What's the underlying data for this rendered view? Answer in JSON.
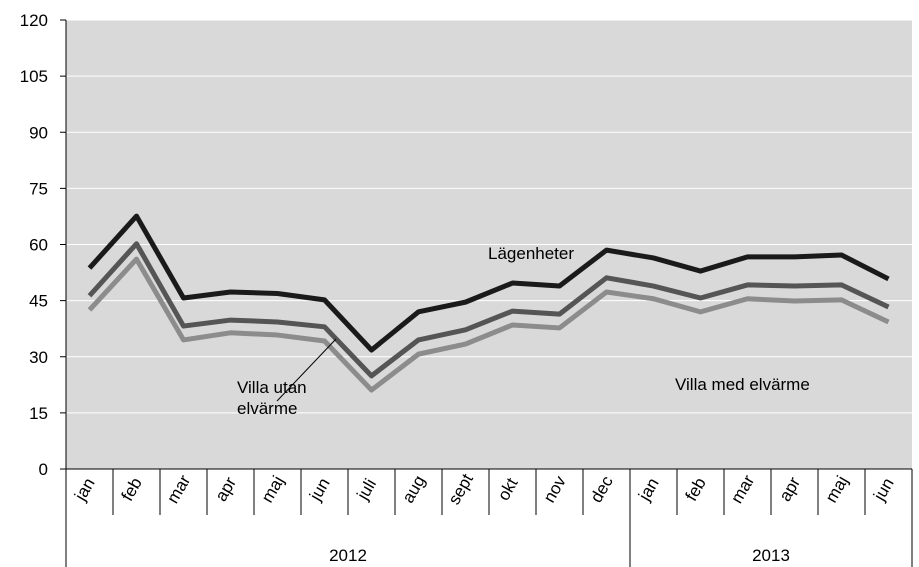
{
  "chart_data": {
    "type": "line",
    "categories": [
      "jan",
      "feb",
      "mar",
      "apr",
      "maj",
      "jun",
      "juli",
      "aug",
      "sept",
      "okt",
      "nov",
      "dec",
      "jan",
      "feb",
      "mar",
      "apr",
      "maj",
      "jun"
    ],
    "groups": [
      "2012",
      "2013"
    ],
    "series": [
      {
        "name": "Lägenheter",
        "color": "#1a1a1a",
        "values": [
          53.7,
          67.6,
          45.7,
          47.3,
          46.9,
          45.2,
          31.8,
          42,
          44.6,
          49.7,
          48.9,
          58.5,
          56.4,
          52.9,
          56.7,
          56.7,
          57.2,
          50.8
        ]
      },
      {
        "name": "Villa med elvärme",
        "color": "#555555",
        "values": [
          46.3,
          60.2,
          38.2,
          39.8,
          39.3,
          38,
          24.9,
          34.5,
          37.2,
          42.2,
          41.4,
          51.1,
          48.9,
          45.7,
          49.2,
          48.9,
          49.2,
          43.3
        ]
      },
      {
        "name": "Villa utan elvärme",
        "color": "#8c8c8c",
        "values": [
          42.5,
          56.1,
          34.5,
          36.4,
          35.8,
          34.2,
          21.1,
          30.7,
          33.4,
          38.5,
          37.7,
          47.3,
          45.5,
          42,
          45.5,
          44.9,
          45.2,
          39.3
        ]
      }
    ],
    "ylim": [
      0,
      120
    ],
    "yticks": [
      0,
      15,
      30,
      45,
      60,
      75,
      90,
      105,
      120
    ],
    "grid": true,
    "plot_background": "#d9d9d9"
  }
}
